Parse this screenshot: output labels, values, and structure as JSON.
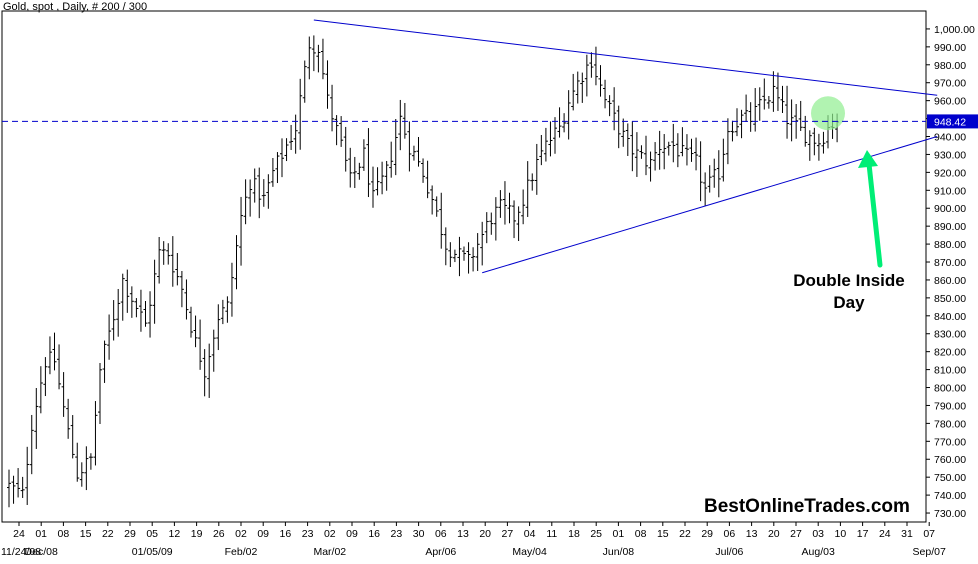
{
  "chart_data": {
    "type": "ohlc",
    "title": "Gold, spot , Daily, # 200 / 300",
    "watermark": "BestOnlineTrades.com",
    "annotation_lines": [
      "Double Inside",
      "Day"
    ],
    "ylim": [
      725,
      1010
    ],
    "y_ticks": [
      "730.00",
      "740.00",
      "750.00",
      "760.00",
      "770.00",
      "780.00",
      "790.00",
      "800.00",
      "810.00",
      "820.00",
      "830.00",
      "840.00",
      "850.00",
      "860.00",
      "870.00",
      "880.00",
      "890.00",
      "900.00",
      "910.00",
      "920.00",
      "930.00",
      "940.00",
      "950.00",
      "960.00",
      "970.00",
      "980.00",
      "990.00",
      "1,000.00"
    ],
    "current_price": {
      "value": 948.42,
      "label": "948.42"
    },
    "x_ticks": [
      "24",
      "01",
      "08",
      "15",
      "22",
      "29",
      "05",
      "12",
      "19",
      "26",
      "02",
      "09",
      "16",
      "23",
      "02",
      "09",
      "16",
      "23",
      "30",
      "06",
      "13",
      "20",
      "27",
      "04",
      "11",
      "18",
      "25",
      "01",
      "08",
      "15",
      "22",
      "29",
      "06",
      "13",
      "20",
      "27",
      "03",
      "10",
      "17",
      "24",
      "31",
      "07"
    ],
    "x_month_labels": [
      "11/24/08",
      "Dec/08",
      "01/05/09",
      "Feb/02",
      "Mar/02",
      "Apr/06",
      "May/04",
      "Jun/08",
      "Jul/06",
      "Aug/03",
      "Sep/07"
    ],
    "x_month_label_tick_index": [
      0,
      1,
      6,
      10,
      14,
      19,
      23,
      27,
      32,
      36,
      41
    ],
    "anchors": [
      [
        0,
        745
      ],
      [
        3,
        740
      ],
      [
        5,
        780
      ],
      [
        8,
        815
      ],
      [
        10,
        815
      ],
      [
        13,
        775
      ],
      [
        15,
        752
      ],
      [
        18,
        760
      ],
      [
        20,
        810
      ],
      [
        23,
        840
      ],
      [
        25,
        860
      ],
      [
        28,
        845
      ],
      [
        30,
        835
      ],
      [
        33,
        875
      ],
      [
        35,
        875
      ],
      [
        38,
        855
      ],
      [
        41,
        825
      ],
      [
        43,
        810
      ],
      [
        46,
        840
      ],
      [
        48,
        845
      ],
      [
        51,
        895
      ],
      [
        53,
        915
      ],
      [
        56,
        905
      ],
      [
        58,
        920
      ],
      [
        61,
        935
      ],
      [
        63,
        945
      ],
      [
        66,
        992
      ],
      [
        68,
        990
      ],
      [
        70,
        960
      ],
      [
        73,
        935
      ],
      [
        75,
        915
      ],
      [
        78,
        930
      ],
      [
        80,
        905
      ],
      [
        83,
        920
      ],
      [
        86,
        950
      ],
      [
        88,
        935
      ],
      [
        91,
        920
      ],
      [
        93,
        905
      ],
      [
        96,
        880
      ],
      [
        98,
        875
      ],
      [
        101,
        870
      ],
      [
        103,
        880
      ],
      [
        106,
        895
      ],
      [
        108,
        900
      ],
      [
        111,
        895
      ],
      [
        113,
        905
      ],
      [
        116,
        925
      ],
      [
        118,
        935
      ],
      [
        121,
        945
      ],
      [
        123,
        960
      ],
      [
        126,
        975
      ],
      [
        128,
        983
      ],
      [
        131,
        960
      ],
      [
        133,
        950
      ],
      [
        136,
        935
      ],
      [
        138,
        930
      ],
      [
        141,
        925
      ],
      [
        143,
        935
      ],
      [
        146,
        935
      ],
      [
        148,
        930
      ],
      [
        151,
        925
      ],
      [
        153,
        910
      ],
      [
        156,
        920
      ],
      [
        158,
        945
      ],
      [
        161,
        950
      ],
      [
        163,
        950
      ],
      [
        166,
        960
      ],
      [
        168,
        965
      ],
      [
        171,
        950
      ],
      [
        173,
        945
      ],
      [
        176,
        940
      ],
      [
        178,
        937
      ],
      [
        180,
        945
      ],
      [
        182,
        950
      ]
    ],
    "channel_lines": [
      {
        "from": [
          67,
          1005
        ],
        "to": [
          204,
          963
        ]
      },
      {
        "from": [
          104,
          864
        ],
        "to": [
          204,
          940
        ]
      }
    ],
    "colors": {
      "bars": "#000000",
      "trendlines": "#0000cc",
      "price_line": "#0000cc",
      "highlight": "#90ee90",
      "arrow": "#00ee76",
      "axis_label_bg": "#0000cc",
      "axis_label_text": "#ffffff"
    }
  }
}
